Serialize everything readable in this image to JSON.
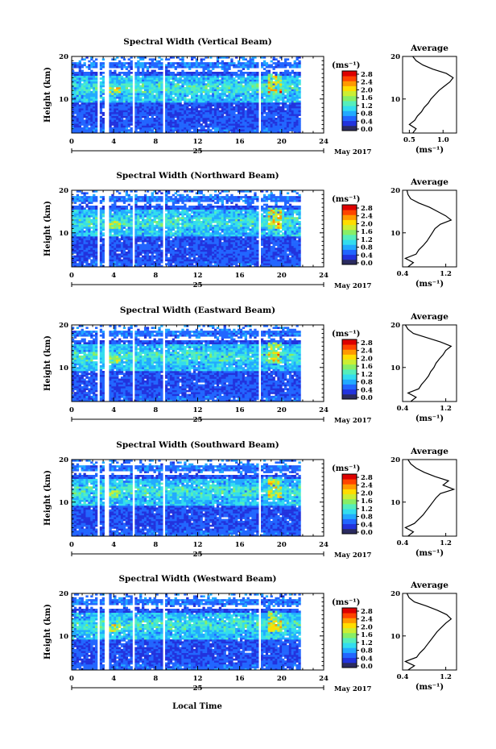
{
  "figure": {
    "footer_label": "Local Time",
    "date_label": "May 2017",
    "day_label": "25"
  },
  "colorbar": {
    "unit": "(ms⁻¹)",
    "ticks": [
      "0.0",
      "0.4",
      "0.8",
      "1.2",
      "1.6",
      "2.0",
      "2.4",
      "2.8"
    ],
    "colors": [
      "#2b2b60",
      "#2233dd",
      "#2266ff",
      "#22aaff",
      "#33ddee",
      "#55eebb",
      "#88ee66",
      "#ccee33",
      "#ffdd00",
      "#ff9900",
      "#ff4400",
      "#dd0000"
    ]
  },
  "chart_data": [
    {
      "type": "heatmap",
      "title": "Spectral Width (Vertical Beam)",
      "xlabel": "",
      "ylabel": "Height (km)",
      "xlim": [
        0,
        24
      ],
      "ylim": [
        2,
        20
      ],
      "x_ticks": [
        0,
        4,
        8,
        12,
        16,
        20,
        24
      ],
      "y_ticks": [
        10,
        20
      ],
      "gaps_hours": [
        [
          2.3,
          2.6
        ],
        [
          3.1,
          3.4
        ],
        [
          5.6,
          6.0
        ],
        [
          8.5,
          8.8
        ],
        [
          17.7,
          18.0
        ]
      ],
      "colorbar_ticks": [
        0.0,
        0.4,
        0.8,
        1.2,
        1.6,
        2.0,
        2.4,
        2.8
      ],
      "colorbar_unit": "(ms⁻¹)",
      "profile": {
        "title": "Average",
        "xlabel": "(ms⁻¹)",
        "x_ticks": [
          0.5,
          1.0
        ],
        "xlim": [
          0.4,
          1.2
        ],
        "height_km": [
          2,
          3,
          4,
          5,
          6,
          7,
          8,
          9,
          10,
          11,
          12,
          13,
          14,
          15,
          16,
          17,
          18,
          19,
          20
        ],
        "values": [
          0.55,
          0.6,
          0.5,
          0.58,
          0.62,
          0.68,
          0.72,
          0.78,
          0.82,
          0.88,
          0.94,
          1.02,
          1.1,
          1.15,
          1.05,
          0.85,
          0.7,
          0.6,
          0.55
        ]
      }
    },
    {
      "type": "heatmap",
      "title": "Spectral Width (Northward Beam)",
      "xlabel": "",
      "ylabel": "Height (km)",
      "xlim": [
        0,
        24
      ],
      "ylim": [
        2,
        20
      ],
      "x_ticks": [
        0,
        4,
        8,
        12,
        16,
        20,
        24
      ],
      "y_ticks": [
        10,
        20
      ],
      "gaps_hours": [
        [
          2.3,
          2.6
        ],
        [
          3.1,
          3.4
        ],
        [
          5.6,
          6.0
        ],
        [
          8.5,
          8.8
        ],
        [
          17.7,
          18.0
        ]
      ],
      "colorbar_ticks": [
        0.0,
        0.4,
        0.8,
        1.2,
        1.6,
        2.0,
        2.4,
        2.8
      ],
      "colorbar_unit": "(ms⁻¹)",
      "profile": {
        "title": "Average",
        "xlabel": "(ms⁻¹)",
        "x_ticks": [
          0.4,
          1.2
        ],
        "xlim": [
          0.4,
          1.4
        ],
        "height_km": [
          2,
          3,
          4,
          5,
          6,
          7,
          8,
          9,
          10,
          11,
          12,
          13,
          14,
          15,
          16,
          17,
          18,
          19,
          20
        ],
        "values": [
          0.5,
          0.6,
          0.45,
          0.65,
          0.7,
          0.78,
          0.85,
          0.9,
          0.95,
          1.0,
          1.1,
          1.3,
          1.2,
          1.05,
          0.9,
          0.7,
          0.55,
          0.5,
          0.48
        ]
      }
    },
    {
      "type": "heatmap",
      "title": "Spectral Width (Eastward Beam)",
      "xlabel": "",
      "ylabel": "Height (km)",
      "xlim": [
        0,
        24
      ],
      "ylim": [
        2,
        20
      ],
      "x_ticks": [
        0,
        4,
        8,
        12,
        16,
        20,
        24
      ],
      "y_ticks": [
        10,
        20
      ],
      "gaps_hours": [
        [
          2.3,
          2.6
        ],
        [
          3.1,
          3.4
        ],
        [
          5.6,
          6.0
        ],
        [
          8.5,
          8.8
        ],
        [
          17.7,
          18.0
        ]
      ],
      "colorbar_ticks": [
        0.0,
        0.4,
        0.8,
        1.2,
        1.6,
        2.0,
        2.4,
        2.8
      ],
      "colorbar_unit": "(ms⁻¹)",
      "profile": {
        "title": "Average",
        "xlabel": "(ms⁻¹)",
        "x_ticks": [
          0.4,
          1.2
        ],
        "xlim": [
          0.4,
          1.4
        ],
        "height_km": [
          2,
          3,
          4,
          5,
          6,
          7,
          8,
          9,
          10,
          11,
          12,
          13,
          14,
          15,
          16,
          17,
          18,
          19,
          20
        ],
        "values": [
          0.55,
          0.65,
          0.5,
          0.7,
          0.75,
          0.82,
          0.88,
          0.92,
          0.98,
          1.02,
          1.08,
          1.15,
          1.2,
          1.3,
          1.1,
          0.85,
          0.6,
          0.5,
          0.45
        ]
      }
    },
    {
      "type": "heatmap",
      "title": "Spectral Width (Southward Beam)",
      "xlabel": "",
      "ylabel": "Height (km)",
      "xlim": [
        0,
        24
      ],
      "ylim": [
        2,
        20
      ],
      "x_ticks": [
        0,
        4,
        8,
        12,
        16,
        20,
        24
      ],
      "y_ticks": [
        10,
        20
      ],
      "gaps_hours": [
        [
          2.3,
          2.6
        ],
        [
          3.1,
          3.4
        ],
        [
          5.6,
          6.0
        ],
        [
          8.5,
          8.8
        ],
        [
          17.7,
          18.0
        ]
      ],
      "colorbar_ticks": [
        0.0,
        0.4,
        0.8,
        1.2,
        1.6,
        2.0,
        2.4,
        2.8
      ],
      "colorbar_unit": "(ms⁻¹)",
      "profile": {
        "title": "Average",
        "xlabel": "(ms⁻¹)",
        "x_ticks": [
          0.4,
          1.2
        ],
        "xlim": [
          0.4,
          1.4
        ],
        "height_km": [
          2,
          3,
          4,
          5,
          6,
          7,
          8,
          9,
          10,
          11,
          12,
          13,
          14,
          15,
          16,
          17,
          18,
          19,
          20
        ],
        "values": [
          0.5,
          0.6,
          0.45,
          0.62,
          0.7,
          0.78,
          0.84,
          0.9,
          0.96,
          1.02,
          1.1,
          1.35,
          1.15,
          1.25,
          1.0,
          0.8,
          0.65,
          0.55,
          0.5
        ]
      }
    },
    {
      "type": "heatmap",
      "title": "Spectral Width (Westward Beam)",
      "xlabel": "Local Time",
      "ylabel": "Height (km)",
      "xlim": [
        0,
        24
      ],
      "ylim": [
        2,
        20
      ],
      "x_ticks": [
        0,
        4,
        8,
        12,
        16,
        20,
        24
      ],
      "y_ticks": [
        10,
        20
      ],
      "gaps_hours": [
        [
          2.3,
          2.6
        ],
        [
          3.1,
          3.4
        ],
        [
          5.6,
          6.0
        ],
        [
          8.5,
          8.8
        ],
        [
          17.7,
          18.0
        ]
      ],
      "colorbar_ticks": [
        0.0,
        0.4,
        0.8,
        1.2,
        1.6,
        2.0,
        2.4,
        2.8
      ],
      "colorbar_unit": "(ms⁻¹)",
      "profile": {
        "title": "Average",
        "xlabel": "(ms⁻¹)",
        "x_ticks": [
          0.4,
          1.2
        ],
        "xlim": [
          0.4,
          1.4
        ],
        "height_km": [
          2,
          3,
          4,
          5,
          6,
          7,
          8,
          9,
          10,
          11,
          12,
          13,
          14,
          15,
          16,
          17,
          18,
          19,
          20
        ],
        "values": [
          0.5,
          0.62,
          0.45,
          0.66,
          0.72,
          0.8,
          0.86,
          0.92,
          0.98,
          1.04,
          1.12,
          1.2,
          1.3,
          1.22,
          1.05,
          0.85,
          0.62,
          0.52,
          0.48
        ]
      }
    }
  ]
}
